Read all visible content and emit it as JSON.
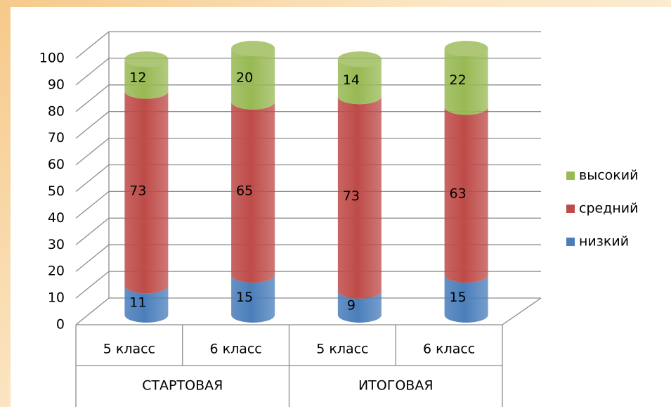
{
  "chart_data": {
    "type": "stacked_bar_3d",
    "categories": [
      "5 класс",
      "6 класс",
      "5 класс",
      "6 класс"
    ],
    "groups": [
      {
        "label": "СТАРТОВАЯ",
        "span": 2
      },
      {
        "label": "ИТОГОВАЯ",
        "span": 2
      }
    ],
    "series": [
      {
        "name": "низкий",
        "color": "#4a7ebb",
        "values": [
          11,
          15,
          9,
          15
        ]
      },
      {
        "name": "средний",
        "color": "#be4b48",
        "values": [
          73,
          65,
          73,
          63
        ]
      },
      {
        "name": "высокий",
        "color": "#98b954",
        "values": [
          12,
          20,
          14,
          22
        ]
      }
    ],
    "ylim": [
      0,
      100
    ],
    "yticks": [
      0,
      10,
      20,
      30,
      40,
      50,
      60,
      70,
      80,
      90,
      100
    ],
    "grid": true,
    "legend": "right"
  }
}
